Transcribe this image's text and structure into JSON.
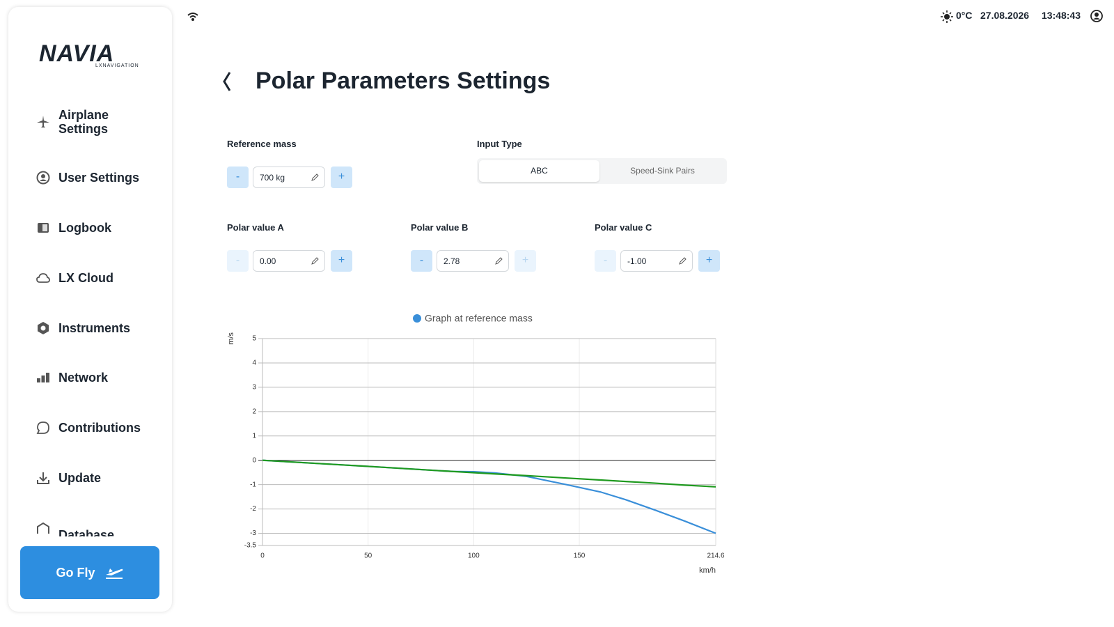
{
  "status": {
    "temperature": "0°C",
    "date": "27.08.2026",
    "time": "13:48:43"
  },
  "sidebar": {
    "logo": "NAVIA",
    "logo_sub": "LXNAVIGATION",
    "nav": [
      "Airplane Settings",
      "User Settings",
      "Logbook",
      "LX Cloud",
      "Instruments",
      "Network",
      "Contributions",
      "Update",
      "Database"
    ],
    "action": "Go Fly"
  },
  "header": {
    "title": "Polar Parameters Settings"
  },
  "controls": {
    "minus": "-",
    "plus": "+"
  },
  "form": {
    "reference_mass": {
      "label": "Reference mass",
      "value": "700 kg"
    },
    "input_type": {
      "label": "Input Type",
      "options": [
        "ABC",
        "Speed-Sink Pairs"
      ]
    },
    "polar_a": {
      "label": "Polar value A",
      "value": "0.00"
    },
    "polar_b": {
      "label": "Polar value B",
      "value": "2.78"
    },
    "polar_c": {
      "label": "Polar value C",
      "value": "-1.00"
    }
  },
  "chart_data": {
    "type": "line",
    "y_label": "m/s",
    "x_label": "km/h",
    "x": [
      0,
      50,
      90,
      100,
      110,
      125,
      144,
      160,
      172,
      186,
      200,
      214.6
    ],
    "series": [
      {
        "name": "Graph at reference mass",
        "color": "#3a8fd9",
        "values": [
          0,
          -0.25,
          -0.46,
          -0.47,
          -0.52,
          -0.66,
          -1.0,
          -1.3,
          -1.62,
          -2.05,
          -2.5,
          -3.0
        ]
      },
      {
        "color": "#1f9a1f",
        "values": [
          0,
          -0.25,
          -0.46,
          -0.51,
          -0.56,
          -0.63,
          -0.73,
          -0.81,
          -0.87,
          -0.94,
          -1.02,
          -1.09
        ]
      }
    ],
    "xlim": [
      0,
      214.6
    ],
    "xticks": [
      0,
      50,
      100,
      150,
      214.6
    ],
    "ylim": [
      -3.5,
      5
    ],
    "yticks": [
      -3.5,
      -3,
      -2,
      -1,
      0,
      1,
      2,
      3,
      4,
      5
    ],
    "grid": true
  }
}
